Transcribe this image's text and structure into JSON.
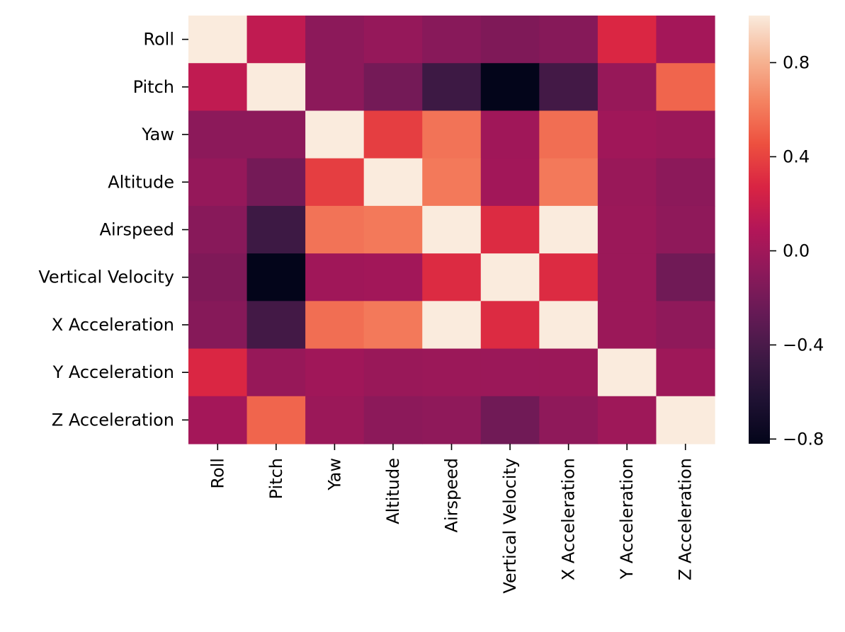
{
  "chart_data": {
    "type": "heatmap",
    "title": "",
    "xlabel": "",
    "ylabel": "",
    "x_categories": [
      "Roll",
      "Pitch",
      "Yaw",
      "Altitude",
      "Airspeed",
      "Vertical Velocity",
      "X Acceleration",
      "Y Acceleration",
      "Z Acceleration"
    ],
    "y_categories": [
      "Roll",
      "Pitch",
      "Yaw",
      "Altitude",
      "Airspeed",
      "Vertical Velocity",
      "X Acceleration",
      "Y Acceleration",
      "Z Acceleration"
    ],
    "values": [
      [
        1.0,
        0.15,
        -0.09,
        -0.05,
        -0.11,
        -0.15,
        -0.12,
        0.28,
        0.02
      ],
      [
        0.15,
        1.0,
        -0.09,
        -0.2,
        -0.46,
        -0.82,
        -0.43,
        -0.04,
        0.53
      ],
      [
        -0.09,
        -0.09,
        1.0,
        0.38,
        0.58,
        0.0,
        0.56,
        0.0,
        -0.02
      ],
      [
        -0.05,
        -0.2,
        0.38,
        1.0,
        0.6,
        0.01,
        0.6,
        -0.03,
        -0.09
      ],
      [
        -0.11,
        -0.46,
        0.58,
        0.6,
        1.0,
        0.3,
        1.0,
        -0.02,
        -0.08
      ],
      [
        -0.15,
        -0.82,
        0.0,
        0.01,
        0.3,
        1.0,
        0.3,
        -0.02,
        -0.22
      ],
      [
        -0.12,
        -0.43,
        0.56,
        0.6,
        1.0,
        0.3,
        1.0,
        -0.02,
        -0.08
      ],
      [
        0.28,
        -0.04,
        0.0,
        -0.03,
        -0.02,
        -0.02,
        -0.02,
        1.0,
        -0.01
      ],
      [
        0.02,
        0.53,
        -0.02,
        -0.09,
        -0.08,
        -0.22,
        -0.08,
        -0.01,
        1.0
      ]
    ],
    "colorbar": {
      "range": [
        -0.82,
        1.0
      ],
      "ticks": [
        -0.8,
        -0.4,
        0.0,
        0.4,
        0.8
      ],
      "tick_labels": [
        "−0.8",
        "−0.4",
        "0.0",
        "0.4",
        "0.8"
      ],
      "colormap": "rocket"
    },
    "grid": false,
    "legend": "colorbar-right"
  }
}
